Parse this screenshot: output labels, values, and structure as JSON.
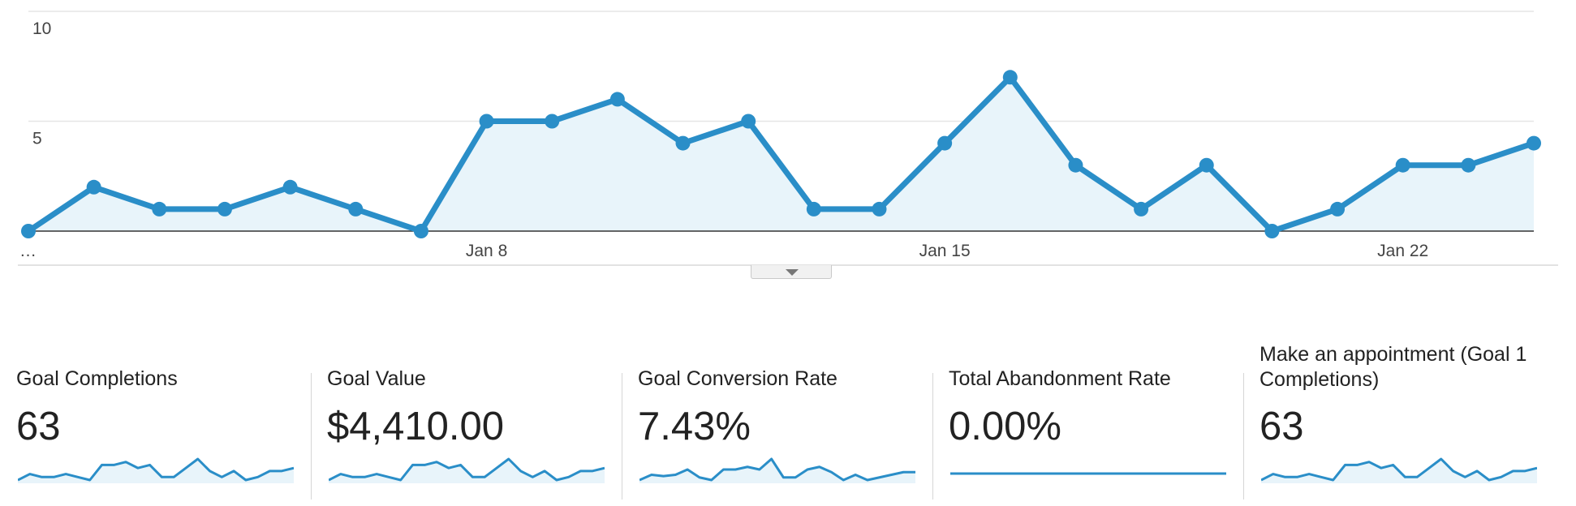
{
  "chart_data": {
    "type": "area",
    "x": [
      "Jan 1",
      "Jan 2",
      "Jan 3",
      "Jan 4",
      "Jan 5",
      "Jan 6",
      "Jan 7",
      "Jan 8",
      "Jan 9",
      "Jan 10",
      "Jan 11",
      "Jan 12",
      "Jan 13",
      "Jan 14",
      "Jan 15",
      "Jan 16",
      "Jan 17",
      "Jan 18",
      "Jan 19",
      "Jan 20",
      "Jan 21",
      "Jan 22",
      "Jan 23",
      "Jan 24"
    ],
    "series": [
      {
        "values": [
          0,
          2,
          1,
          1,
          2,
          1,
          0,
          5,
          5,
          6,
          4,
          5,
          1,
          1,
          4,
          7,
          3,
          1,
          3,
          0,
          1,
          3,
          3,
          4
        ]
      }
    ],
    "xticks": [
      {
        "label": "…",
        "x": "Jan 1"
      },
      {
        "label": "Jan 8",
        "x": "Jan 8"
      },
      {
        "label": "Jan 15",
        "x": "Jan 15"
      },
      {
        "label": "Jan 22",
        "x": "Jan 22"
      }
    ],
    "yticks": [
      {
        "label": "5",
        "value": 5
      },
      {
        "label": "10",
        "value": 10
      }
    ],
    "ylim": [
      0,
      10
    ],
    "grid": true,
    "colors": {
      "line": "#2a8ec8",
      "fill": "#e8f4fa",
      "grid": "#e6e6e6",
      "baseline": "#333333"
    }
  },
  "chart_toggle_icon": "chevron-down-icon",
  "scorecards": [
    {
      "title": "Goal Completions",
      "value": "63",
      "sparkline": [
        0,
        2,
        1,
        1,
        2,
        1,
        0,
        5,
        5,
        6,
        4,
        5,
        1,
        1,
        4,
        7,
        3,
        1,
        3,
        0,
        1,
        3,
        3,
        4
      ]
    },
    {
      "title": "Goal Value",
      "value": "$4,410.00",
      "sparkline": [
        0,
        2,
        1,
        1,
        2,
        1,
        0,
        5,
        5,
        6,
        4,
        5,
        1,
        1,
        4,
        7,
        3,
        1,
        3,
        0,
        1,
        3,
        3,
        4
      ]
    },
    {
      "title": "Goal Conversion Rate",
      "value": "7.43%",
      "sparkline": [
        0,
        2,
        1.5,
        2,
        4,
        1,
        0,
        4,
        4,
        5,
        4,
        8,
        1,
        1,
        4,
        5,
        3,
        0,
        2,
        0,
        1,
        2,
        3,
        3
      ]
    },
    {
      "title": "Total Abandonment Rate",
      "value": "0.00%",
      "sparkline": [
        0,
        0,
        0,
        0,
        0,
        0,
        0,
        0,
        0,
        0,
        0,
        0,
        0,
        0,
        0,
        0,
        0,
        0,
        0,
        0,
        0,
        0,
        0,
        0
      ]
    },
    {
      "title": "Make an appointment (Goal 1 Completions)",
      "value": "63",
      "sparkline": [
        0,
        2,
        1,
        1,
        2,
        1,
        0,
        5,
        5,
        6,
        4,
        5,
        1,
        1,
        4,
        7,
        3,
        1,
        3,
        0,
        1,
        3,
        3,
        4
      ]
    }
  ]
}
